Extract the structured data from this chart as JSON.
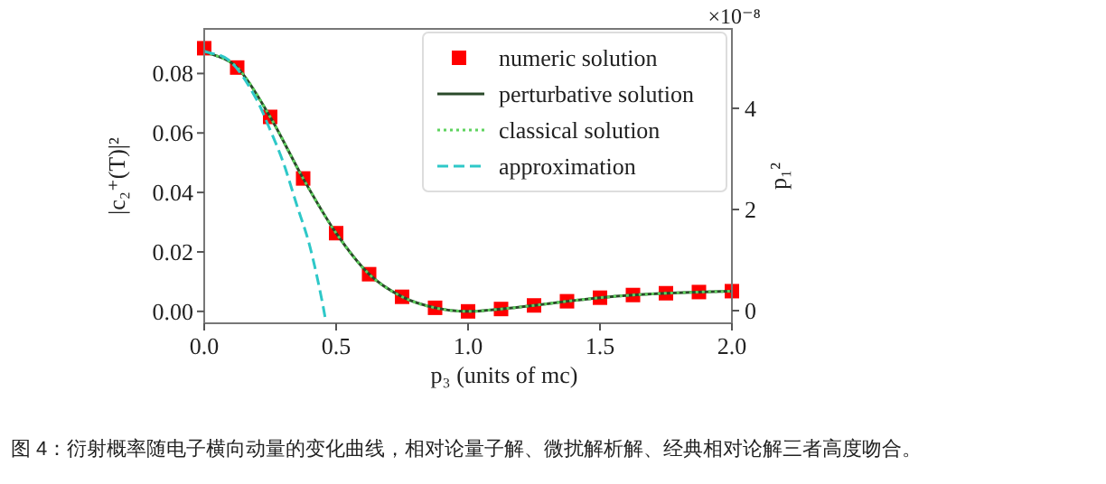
{
  "chart_data": {
    "type": "line",
    "xlabel": "p₃ (units of mc)",
    "ylabel": "|c₂⁺(T)|²",
    "y2label": "p₁²",
    "xlim": [
      0,
      2
    ],
    "xticks": [
      {
        "value": 0,
        "label": "0.0"
      },
      {
        "value": 0.5,
        "label": "0.5"
      },
      {
        "value": 1,
        "label": "1.0"
      },
      {
        "value": 1.5,
        "label": "1.5"
      },
      {
        "value": 2,
        "label": "2.0"
      }
    ],
    "ylim": [
      -0.004,
      0.095
    ],
    "yticks": [
      {
        "value": 0,
        "label": "0.00"
      },
      {
        "value": 0.02,
        "label": "0.02"
      },
      {
        "value": 0.04,
        "label": "0.04"
      },
      {
        "value": 0.06,
        "label": "0.06"
      },
      {
        "value": 0.08,
        "label": "0.08"
      }
    ],
    "y2lim": [
      -0.25,
      5.57
    ],
    "y2ticks": [
      0,
      2,
      4
    ],
    "legend": "top right",
    "grid": false,
    "annotations": [
      "×10⁻⁸",
      "图 4：衍射概率随电子横向动量的变化曲线，相对论量子解、微扰解析解、经典相对论解三者高度吻合。"
    ],
    "series": [
      {
        "name": "numeric solution",
        "type": "scatter",
        "marker": "square",
        "color": "#ff0000",
        "x": [
          0,
          0.125,
          0.25,
          0.375,
          0.5,
          0.625,
          0.75,
          0.875,
          1.0,
          1.125,
          1.25,
          1.375,
          1.5,
          1.625,
          1.75,
          1.875,
          2.0
        ],
        "values": [
          0.0885,
          0.082,
          0.0654,
          0.0447,
          0.0263,
          0.0125,
          0.0049,
          0.0012,
          0.0,
          0.0008,
          0.002,
          0.0034,
          0.0046,
          0.0055,
          0.0061,
          0.0065,
          0.0068
        ]
      },
      {
        "name": "perturbative solution",
        "line_style": "solid",
        "color": "#2a4a2a",
        "x": [
          0,
          0.125,
          0.25,
          0.375,
          0.5,
          0.625,
          0.75,
          0.875,
          1.0,
          1.125,
          1.25,
          1.375,
          1.5,
          1.625,
          1.75,
          1.875,
          2.0
        ],
        "values": [
          0.0875,
          0.082,
          0.0654,
          0.0447,
          0.0263,
          0.0125,
          0.0049,
          0.0012,
          0.0,
          0.0008,
          0.002,
          0.0034,
          0.0046,
          0.0055,
          0.0061,
          0.0065,
          0.0068
        ]
      },
      {
        "name": "classical solution",
        "line_style": "dotted",
        "color": "#5fd35f",
        "x": [
          0,
          0.125,
          0.25,
          0.375,
          0.5,
          0.625,
          0.75,
          0.875,
          1.0,
          1.125,
          1.25,
          1.375,
          1.5,
          1.625,
          1.75,
          1.875,
          2.0
        ],
        "values": [
          0.0875,
          0.082,
          0.0654,
          0.0447,
          0.0263,
          0.0125,
          0.0049,
          0.0012,
          0.0,
          0.0008,
          0.002,
          0.0034,
          0.0046,
          0.0055,
          0.0061,
          0.0065,
          0.0068
        ]
      },
      {
        "name": "approximation",
        "line_style": "dashed",
        "color": "#2ec8c8",
        "x": [
          0,
          0.1,
          0.2,
          0.25,
          0.3,
          0.35,
          0.4,
          0.45,
          0.46
        ],
        "values": [
          0.0875,
          0.084,
          0.071,
          0.061,
          0.05,
          0.036,
          0.022,
          0.002,
          -0.003
        ]
      }
    ]
  }
}
